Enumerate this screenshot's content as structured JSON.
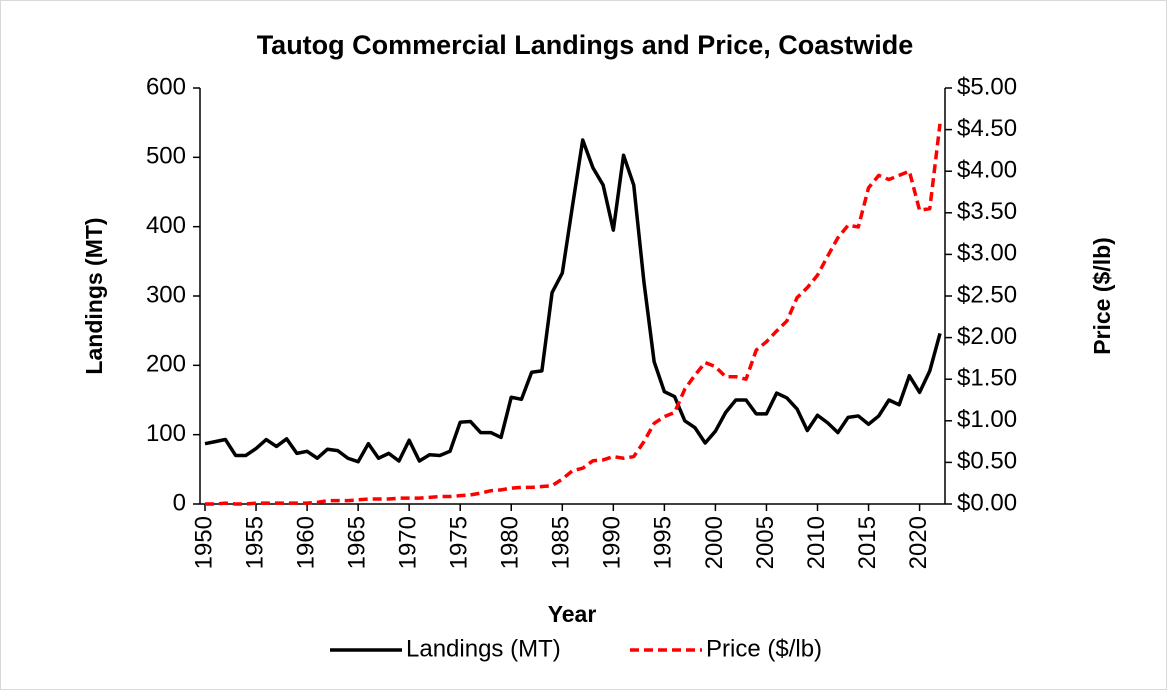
{
  "chart_data": {
    "type": "line",
    "title": "Tautog Commercial Landings and Price, Coastwide",
    "x_label": "Year",
    "y_label": "Landings (MT)",
    "y2_label": "Price ($/lb)",
    "x": [
      1950,
      1951,
      1952,
      1953,
      1954,
      1955,
      1956,
      1957,
      1958,
      1959,
      1960,
      1961,
      1962,
      1963,
      1964,
      1965,
      1966,
      1967,
      1968,
      1969,
      1970,
      1971,
      1972,
      1973,
      1974,
      1975,
      1976,
      1977,
      1978,
      1979,
      1980,
      1981,
      1982,
      1983,
      1984,
      1985,
      1986,
      1987,
      1988,
      1989,
      1990,
      1991,
      1992,
      1993,
      1994,
      1995,
      1996,
      1997,
      1998,
      1999,
      2000,
      2001,
      2002,
      2003,
      2004,
      2005,
      2006,
      2007,
      2008,
      2009,
      2010,
      2011,
      2012,
      2013,
      2014,
      2015,
      2016,
      2017,
      2018,
      2019,
      2020,
      2021,
      2022
    ],
    "xlim": [
      1950,
      2022
    ],
    "xticks": [
      1950,
      1955,
      1960,
      1965,
      1970,
      1975,
      1980,
      1985,
      1990,
      1995,
      2000,
      2005,
      2010,
      2015,
      2020
    ],
    "ylim": [
      0,
      600
    ],
    "yticks": [
      0,
      100,
      200,
      300,
      400,
      500,
      600
    ],
    "y2lim": [
      0,
      5
    ],
    "y2ticks": [
      {
        "value": 0,
        "label": "$0.00"
      },
      {
        "value": 0.5,
        "label": "$0.50"
      },
      {
        "value": 1,
        "label": "$1.00"
      },
      {
        "value": 1.5,
        "label": "$1.50"
      },
      {
        "value": 2,
        "label": "$2.00"
      },
      {
        "value": 2.5,
        "label": "$2.50"
      },
      {
        "value": 3,
        "label": "$3.00"
      },
      {
        "value": 3.5,
        "label": "$3.50"
      },
      {
        "value": 4,
        "label": "$4.00"
      },
      {
        "value": 4.5,
        "label": "$4.50"
      },
      {
        "value": 5,
        "label": "$5.00"
      }
    ],
    "legend": "bottom",
    "series": [
      {
        "name": "Landings (MT)",
        "color": "#000000",
        "dash": false,
        "values": [
          87,
          90,
          93,
          70,
          70,
          80,
          93,
          83,
          94,
          73,
          76,
          66,
          79,
          77,
          66,
          61,
          87,
          66,
          73,
          62,
          92,
          62,
          71,
          70,
          76,
          118,
          119,
          103,
          103,
          96,
          154,
          151,
          190,
          192,
          305,
          333,
          430,
          525,
          485,
          460,
          395,
          503,
          460,
          320,
          205,
          162,
          155,
          120,
          110,
          88,
          105,
          132,
          150,
          150,
          130,
          130,
          160,
          153,
          137,
          106,
          128,
          117,
          103,
          125,
          127,
          115,
          127,
          150,
          143,
          185,
          161,
          192,
          246
        ]
      },
      {
        "name": "Price ($/lb)",
        "color": "#ff0000",
        "dash": true,
        "axis": "y2",
        "values": [
          0,
          0,
          0.01,
          0,
          0,
          0.01,
          0.01,
          0.01,
          0.01,
          0.01,
          0.01,
          0.02,
          0.04,
          0.04,
          0.04,
          0.05,
          0.06,
          0.06,
          0.06,
          0.07,
          0.07,
          0.07,
          0.08,
          0.09,
          0.09,
          0.1,
          0.11,
          0.13,
          0.16,
          0.17,
          0.19,
          0.2,
          0.2,
          0.21,
          0.22,
          0.3,
          0.4,
          0.43,
          0.52,
          0.53,
          0.57,
          0.55,
          0.57,
          0.75,
          0.97,
          1.05,
          1.1,
          1.38,
          1.55,
          1.7,
          1.65,
          1.53,
          1.53,
          1.5,
          1.85,
          1.95,
          2.08,
          2.2,
          2.48,
          2.6,
          2.75,
          2.98,
          3.2,
          3.35,
          3.33,
          3.8,
          3.95,
          3.9,
          3.95,
          4,
          3.53,
          3.55,
          4.57
        ]
      }
    ]
  }
}
